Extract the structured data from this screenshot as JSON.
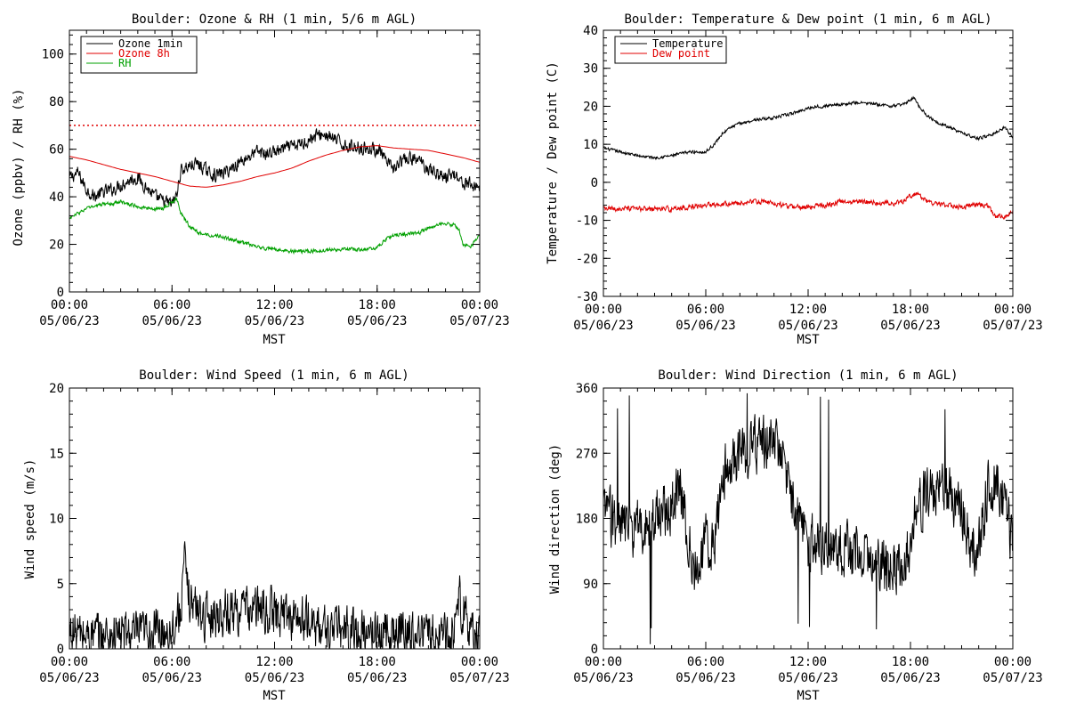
{
  "chart_data": [
    {
      "type": "line",
      "title": "Boulder: Ozone & RH (1 min, 5/6 m AGL)",
      "xlabel": "MST",
      "ylabel": "Ozone (ppbv) / RH (%)",
      "xlim": [
        0,
        24
      ],
      "ylim": [
        0,
        110
      ],
      "yticks": [
        0,
        20,
        40,
        60,
        80,
        100
      ],
      "xticks": [
        {
          "x": 0,
          "time": "00:00",
          "date": "05/06/23"
        },
        {
          "x": 6,
          "time": "06:00",
          "date": "05/06/23"
        },
        {
          "x": 12,
          "time": "12:00",
          "date": "05/06/23"
        },
        {
          "x": 18,
          "time": "18:00",
          "date": "05/06/23"
        },
        {
          "x": 24,
          "time": "00:00",
          "date": "05/07/23"
        }
      ],
      "reference_line": {
        "y": 70,
        "color": "#e00000",
        "style": "dotted"
      },
      "legend": {
        "position": "top-left"
      },
      "series": [
        {
          "name": "Ozone 1min",
          "color": "#000000",
          "noise": 2.5,
          "x": [
            0,
            0.5,
            1,
            1.5,
            2,
            2.5,
            3,
            3.5,
            4,
            4.5,
            5,
            5.5,
            6,
            6.3,
            6.5,
            7,
            7.5,
            8,
            8.5,
            9,
            9.5,
            10,
            10.5,
            11,
            11.5,
            12,
            12.5,
            13,
            13.5,
            14,
            14.5,
            15,
            15.5,
            16,
            16.5,
            17,
            17.5,
            18,
            18.3,
            18.5,
            19,
            19.5,
            20,
            20.5,
            21,
            21.5,
            22,
            22.5,
            23,
            23.5,
            24
          ],
          "y": [
            48,
            50,
            43,
            40,
            42,
            43,
            45,
            47,
            48,
            44,
            40,
            38,
            37,
            41,
            51,
            53,
            54,
            51,
            49,
            50,
            52,
            55,
            57,
            59,
            58,
            59,
            60,
            61,
            62,
            64,
            66,
            66,
            64,
            62,
            61,
            61,
            60,
            60,
            58,
            54,
            52,
            55,
            56,
            55,
            52,
            50,
            48,
            50,
            46,
            45,
            44
          ]
        },
        {
          "name": "Ozone 8h",
          "color": "#e00000",
          "noise": 0,
          "x": [
            0,
            1,
            2,
            3,
            4,
            5,
            6,
            7,
            8,
            9,
            10,
            11,
            12,
            13,
            14,
            15,
            16,
            17,
            18,
            19,
            20,
            21,
            22,
            23,
            24
          ],
          "y": [
            57,
            55.5,
            53.5,
            51.5,
            50,
            48.5,
            46.5,
            44.5,
            44,
            45,
            46.5,
            48.5,
            50,
            52,
            55,
            57.5,
            59.5,
            61,
            61.5,
            60.5,
            60,
            59.5,
            58,
            56.5,
            54.5
          ]
        },
        {
          "name": "RH",
          "color": "#00a000",
          "noise": 0.7,
          "x": [
            0,
            0.5,
            1,
            1.5,
            2,
            2.5,
            3,
            3.5,
            4,
            4.5,
            5,
            5.5,
            6,
            6.3,
            6.5,
            7,
            7.5,
            8,
            8.5,
            9,
            9.5,
            10,
            10.5,
            11,
            11.5,
            12,
            13,
            14,
            15,
            16,
            17,
            18,
            18.5,
            19,
            19.5,
            20,
            20.5,
            21,
            21.5,
            22,
            22.5,
            22.8,
            23,
            23.5,
            24
          ],
          "y": [
            31,
            33,
            35,
            36,
            37,
            37,
            38,
            37,
            36,
            35,
            35,
            35,
            38,
            39,
            33,
            28,
            25,
            24,
            24,
            23,
            22,
            21,
            20,
            19,
            18,
            18,
            17,
            17,
            17.5,
            18,
            18,
            18.5,
            22,
            24,
            24,
            24.5,
            25,
            27,
            28,
            29,
            28,
            26,
            20,
            19,
            24
          ]
        }
      ]
    },
    {
      "type": "line",
      "title": "Boulder: Temperature & Dew point (1 min, 6 m AGL)",
      "xlabel": "MST",
      "ylabel": "Temperature / Dew point (C)",
      "xlim": [
        0,
        24
      ],
      "ylim": [
        -30,
        40
      ],
      "yticks": [
        -30,
        -20,
        -10,
        0,
        10,
        20,
        30,
        40
      ],
      "xticks": [
        {
          "x": 0,
          "time": "00:00",
          "date": "05/06/23"
        },
        {
          "x": 6,
          "time": "06:00",
          "date": "05/06/23"
        },
        {
          "x": 12,
          "time": "12:00",
          "date": "05/06/23"
        },
        {
          "x": 18,
          "time": "18:00",
          "date": "05/06/23"
        },
        {
          "x": 24,
          "time": "00:00",
          "date": "05/07/23"
        }
      ],
      "legend": {
        "position": "top-left"
      },
      "series": [
        {
          "name": "Temperature",
          "color": "#000000",
          "noise": 0.35,
          "x": [
            0,
            1,
            2,
            3,
            4,
            5,
            5.5,
            6,
            6.5,
            7,
            7.5,
            8,
            9,
            10,
            11,
            12,
            12.5,
            13,
            13.5,
            14,
            15,
            16,
            17,
            17.5,
            18,
            18.2,
            18.5,
            19,
            19.5,
            20,
            21,
            22,
            23,
            23.5,
            24
          ],
          "y": [
            9,
            8,
            7,
            6.5,
            7,
            8,
            8,
            8,
            10,
            13,
            14.5,
            15.5,
            16.5,
            17,
            18,
            19.5,
            20,
            20,
            20.5,
            20.5,
            21,
            20.5,
            20,
            20.5,
            21.5,
            22.5,
            20,
            17.5,
            16,
            15,
            13,
            11.5,
            13,
            14.5,
            12
          ]
        },
        {
          "name": "Dew point",
          "color": "#e00000",
          "noise": 0.6,
          "x": [
            0,
            1,
            2,
            3,
            4,
            5,
            6,
            7,
            8,
            9,
            10,
            11,
            12,
            13,
            14,
            15,
            16,
            17,
            17.5,
            18,
            18.3,
            19,
            20,
            21,
            22,
            22.5,
            23,
            23.5,
            24
          ],
          "y": [
            -7,
            -7,
            -7,
            -7,
            -7,
            -6.5,
            -6,
            -5.5,
            -5.5,
            -5,
            -5.5,
            -6.5,
            -6.5,
            -6,
            -5,
            -5,
            -5.5,
            -5.5,
            -5,
            -3.5,
            -3,
            -5,
            -6,
            -6.5,
            -6,
            -6,
            -9,
            -9,
            -7.5
          ]
        }
      ]
    },
    {
      "type": "line",
      "title": "Boulder: Wind Speed (1 min, 6 m AGL)",
      "xlabel": "MST",
      "ylabel": "Wind speed (m/s)",
      "xlim": [
        0,
        24
      ],
      "ylim": [
        0,
        20
      ],
      "yticks": [
        0,
        5,
        10,
        15,
        20
      ],
      "xticks": [
        {
          "x": 0,
          "time": "00:00",
          "date": "05/06/23"
        },
        {
          "x": 6,
          "time": "06:00",
          "date": "05/06/23"
        },
        {
          "x": 12,
          "time": "12:00",
          "date": "05/06/23"
        },
        {
          "x": 18,
          "time": "18:00",
          "date": "05/06/23"
        },
        {
          "x": 24,
          "time": "00:00",
          "date": "05/07/23"
        }
      ],
      "series": [
        {
          "name": "",
          "color": "#000000",
          "noise": 1.6,
          "x": [
            0,
            1,
            2,
            3,
            4,
            5,
            6,
            6.5,
            6.7,
            7,
            7.5,
            8,
            9,
            10,
            11,
            12,
            13,
            14,
            15,
            16,
            17,
            18,
            19,
            20,
            21,
            22,
            22.5,
            22.7,
            23,
            23.5,
            24
          ],
          "y": [
            1.3,
            1,
            1,
            1.2,
            1,
            1.3,
            1.5,
            3,
            6.5,
            4,
            3,
            2.5,
            2.8,
            3,
            3,
            2.8,
            2.5,
            2,
            1.5,
            1.5,
            1.2,
            1.2,
            1.3,
            1.3,
            1.2,
            1,
            1.5,
            4.5,
            3,
            1,
            0.8
          ]
        }
      ]
    },
    {
      "type": "line",
      "title": "Boulder: Wind Direction (1 min, 6 m AGL)",
      "xlabel": "MST",
      "ylabel": "Wind direction (deg)",
      "xlim": [
        0,
        24
      ],
      "ylim": [
        0,
        360
      ],
      "yticks": [
        0,
        90,
        180,
        270,
        360
      ],
      "xticks": [
        {
          "x": 0,
          "time": "00:00",
          "date": "05/06/23"
        },
        {
          "x": 6,
          "time": "06:00",
          "date": "05/06/23"
        },
        {
          "x": 12,
          "time": "12:00",
          "date": "05/06/23"
        },
        {
          "x": 18,
          "time": "18:00",
          "date": "05/06/23"
        },
        {
          "x": 24,
          "time": "00:00",
          "date": "05/07/23"
        }
      ],
      "series": [
        {
          "name": "",
          "color": "#000000",
          "noise": 35,
          "x": [
            0,
            1,
            2,
            3,
            4,
            4.5,
            5,
            5.5,
            6,
            6.5,
            7,
            7.5,
            8,
            8.5,
            9,
            9.5,
            10,
            10.5,
            11,
            11.5,
            12,
            13,
            14,
            15,
            16,
            17,
            17.5,
            18,
            18.5,
            19,
            19.5,
            20,
            20.5,
            21,
            21.5,
            22,
            22.5,
            23,
            23.5,
            24
          ],
          "y": [
            190,
            170,
            165,
            180,
            200,
            220,
            150,
            100,
            150,
            140,
            240,
            250,
            270,
            280,
            280,
            285,
            280,
            270,
            200,
            180,
            150,
            140,
            135,
            130,
            120,
            110,
            110,
            150,
            200,
            210,
            220,
            215,
            210,
            200,
            150,
            140,
            220,
            230,
            200,
            150
          ]
        }
      ]
    }
  ]
}
